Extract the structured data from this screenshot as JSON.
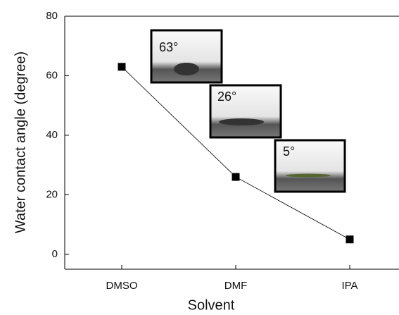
{
  "chart_data": {
    "type": "line",
    "x_label": "Solvent",
    "y_label": "Water contact angle (degree)",
    "categories": [
      "DMSO",
      "DMF",
      "IPA"
    ],
    "series": [
      {
        "color": "#000000",
        "values": [
          63,
          26,
          5
        ]
      }
    ],
    "ylim": [
      -5,
      80
    ],
    "yticks": [
      0,
      20,
      40,
      60,
      80
    ],
    "annotations": [
      "63°",
      "26°",
      "5°"
    ]
  }
}
